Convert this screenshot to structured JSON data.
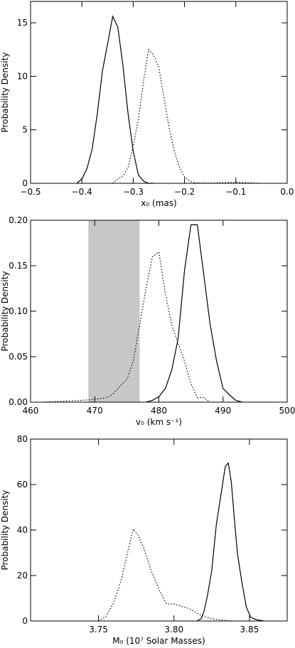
{
  "chart_data": [
    {
      "type": "line",
      "xlabel": "x₀ (mas)",
      "ylabel": "Probability Density",
      "xlim": [
        -0.5,
        0.0
      ],
      "ylim": [
        0,
        17
      ],
      "xticks": [
        -0.5,
        -0.4,
        -0.3,
        -0.2,
        -0.1,
        0.0
      ],
      "xtick_labels": [
        "−0.5",
        "−0.4",
        "−0.3",
        "−0.2",
        "−0.1",
        "0.0"
      ],
      "yticks": [
        0,
        5,
        10,
        15
      ],
      "ytick_labels": [
        "0",
        "5",
        "10",
        "15"
      ],
      "grid": false,
      "series": [
        {
          "style": "solid",
          "x": [
            -0.41,
            -0.4,
            -0.39,
            -0.38,
            -0.37,
            -0.36,
            -0.35,
            -0.34,
            -0.33,
            -0.32,
            -0.31,
            -0.3,
            -0.29,
            -0.28,
            -0.27,
            -0.26
          ],
          "y": [
            0.0,
            0.4,
            1.4,
            3.2,
            6.5,
            10.5,
            13.0,
            15.6,
            14.6,
            11.0,
            6.5,
            3.0,
            0.8,
            0.2,
            0.0,
            0.0
          ]
        },
        {
          "style": "dotted",
          "x": [
            -0.34,
            -0.33,
            -0.32,
            -0.31,
            -0.3,
            -0.29,
            -0.28,
            -0.27,
            -0.26,
            -0.25,
            -0.24,
            -0.23,
            -0.22,
            -0.21,
            -0.2,
            -0.19,
            -0.18,
            -0.15,
            -0.1,
            -0.05
          ],
          "y": [
            0.0,
            0.4,
            0.7,
            1.5,
            3.5,
            6.0,
            9.5,
            12.5,
            12.0,
            10.8,
            8.0,
            5.2,
            3.0,
            1.5,
            0.6,
            0.2,
            0.05,
            0.02,
            0.1,
            0.0
          ]
        }
      ]
    },
    {
      "type": "line",
      "xlabel": "v₀ (km s⁻¹)",
      "ylabel": "Probability Density",
      "xlim": [
        460,
        500
      ],
      "ylim": [
        0,
        0.2
      ],
      "xticks": [
        460,
        470,
        480,
        490,
        500
      ],
      "xtick_labels": [
        "460",
        "470",
        "480",
        "490",
        "500"
      ],
      "yticks": [
        0.0,
        0.05,
        0.1,
        0.15,
        0.2
      ],
      "ytick_labels": [
        "0.00",
        "0.05",
        "0.10",
        "0.15",
        "0.20"
      ],
      "grid": false,
      "shaded_band": [
        469,
        477
      ],
      "series": [
        {
          "style": "solid",
          "x": [
            478,
            479,
            480,
            481,
            482,
            483,
            484,
            485,
            486,
            487,
            488,
            489,
            490,
            491,
            492,
            493
          ],
          "y": [
            0.0,
            0.002,
            0.006,
            0.015,
            0.035,
            0.07,
            0.145,
            0.195,
            0.195,
            0.14,
            0.085,
            0.045,
            0.015,
            0.008,
            0.002,
            0.0
          ],
          "name": ""
        },
        {
          "style": "dotted",
          "x": [
            462,
            465,
            468,
            470,
            472,
            473,
            474,
            475,
            476,
            477,
            478,
            479,
            480,
            481,
            482,
            483,
            484,
            485,
            486,
            487,
            488
          ],
          "y": [
            0.0,
            0.001,
            0.002,
            0.003,
            0.005,
            0.01,
            0.018,
            0.025,
            0.045,
            0.085,
            0.125,
            0.16,
            0.165,
            0.12,
            0.085,
            0.065,
            0.045,
            0.02,
            0.005,
            0.005,
            0.0
          ]
        }
      ]
    },
    {
      "type": "line",
      "xlabel": "M₀ (10⁷ Solar Masses)",
      "ylabel": "Probability Density",
      "xlim": [
        3.705,
        3.875
      ],
      "ylim": [
        0,
        80
      ],
      "xticks": [
        3.75,
        3.8,
        3.85
      ],
      "xtick_labels": [
        "3.75",
        "3.80",
        "3.85"
      ],
      "yticks": [
        0,
        20,
        40,
        60,
        80
      ],
      "ytick_labels": [
        "0",
        "20",
        "40",
        "60",
        "80"
      ],
      "grid": false,
      "series": [
        {
          "style": "solid",
          "x": [
            3.815,
            3.818,
            3.82,
            3.822,
            3.825,
            3.828,
            3.831,
            3.834,
            3.836,
            3.838,
            3.84,
            3.842,
            3.845,
            3.848,
            3.851,
            3.855,
            3.86
          ],
          "y": [
            0.0,
            1.0,
            4.5,
            10.5,
            22.0,
            42.0,
            55.0,
            68.0,
            69.5,
            61.0,
            45.0,
            30.0,
            17.0,
            6.0,
            1.5,
            0.5,
            0.0
          ]
        },
        {
          "style": "dotted",
          "x": [
            3.75,
            3.755,
            3.76,
            3.765,
            3.77,
            3.773,
            3.776,
            3.78,
            3.785,
            3.79,
            3.795,
            3.8,
            3.805,
            3.81,
            3.815,
            3.82,
            3.825,
            3.83,
            3.835,
            3.84
          ],
          "y": [
            0.0,
            2.0,
            8.0,
            18.0,
            32.0,
            40.5,
            38.0,
            32.0,
            22.0,
            14.0,
            7.5,
            7.5,
            6.5,
            5.5,
            3.5,
            2.0,
            1.0,
            0.5,
            0.2,
            0.0
          ]
        }
      ]
    }
  ]
}
